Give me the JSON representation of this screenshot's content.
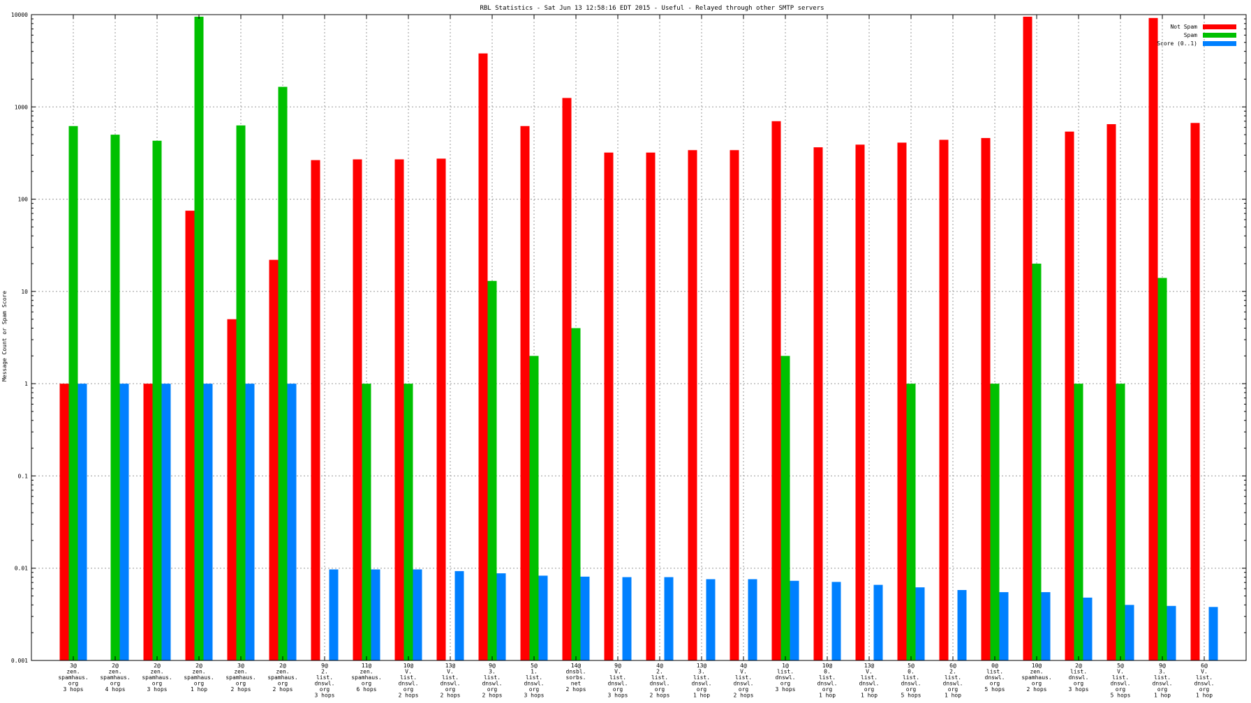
{
  "chart_data": {
    "type": "bar",
    "title": "RBL Statistics - Sat Jun 13 12:58:16 EDT 2015 - Useful - Relayed through other SMTP servers",
    "xlabel": "",
    "ylabel": "Message Count or Spam Score",
    "yscale": "log",
    "ylim": [
      0.001,
      10000
    ],
    "yticks": [
      "0.001",
      "0.01",
      "0.1",
      "1",
      "10",
      "100",
      "1000",
      "10000"
    ],
    "grid": true,
    "legend_position": "top-right",
    "categories": [
      [
        "3@",
        "zen.",
        "spamhaus.",
        "org",
        "3 hops"
      ],
      [
        "2@",
        "zen.",
        "spamhaus.",
        "org",
        "4 hops"
      ],
      [
        "2@",
        "zen.",
        "spamhaus.",
        "org",
        "3 hops"
      ],
      [
        "2@",
        "zen.",
        "spamhaus.",
        "org",
        "1 hop"
      ],
      [
        "3@",
        "zen.",
        "spamhaus.",
        "org",
        "2 hops"
      ],
      [
        "2@",
        "zen.",
        "spamhaus.",
        "org",
        "2 hops"
      ],
      [
        "9@",
        "2.",
        "list.",
        "dnswl.",
        "org",
        "3 hops"
      ],
      [
        "11@",
        "zen.",
        "spamhaus.",
        "org",
        "6 hops"
      ],
      [
        "10@",
        "V.",
        "list.",
        "dnswl.",
        "org",
        "2 hops"
      ],
      [
        "13@",
        "V.",
        "list.",
        "dnswl.",
        "org",
        "2 hops"
      ],
      [
        "9@",
        "3.",
        "list.",
        "dnswl.",
        "org",
        "2 hops"
      ],
      [
        "5@",
        "1.",
        "list.",
        "dnswl.",
        "org",
        "3 hops"
      ],
      [
        "14@",
        "dnsbl.",
        "sorbs.",
        "net",
        "2 hops"
      ],
      [
        "9@",
        "V.",
        "list.",
        "dnswl.",
        "org",
        "3 hops"
      ],
      [
        "4@",
        "2.",
        "list.",
        "dnswl.",
        "org",
        "2 hops"
      ],
      [
        "13@",
        "3.",
        "list.",
        "dnswl.",
        "org",
        "1 hop"
      ],
      [
        "4@",
        "V.",
        "list.",
        "dnswl.",
        "org",
        "2 hops"
      ],
      [
        "1@",
        "list.",
        "dnswl.",
        "org",
        "3 hops"
      ],
      [
        "10@",
        "0.",
        "list.",
        "dnswl.",
        "org",
        "1 hop"
      ],
      [
        "13@",
        "V.",
        "list.",
        "dnswl.",
        "org",
        "1 hop"
      ],
      [
        "5@",
        "0.",
        "list.",
        "dnswl.",
        "org",
        "5 hops"
      ],
      [
        "6@",
        "2.",
        "list.",
        "dnswl.",
        "org",
        "1 hop"
      ],
      [
        "0@",
        "list.",
        "dnswl.",
        "org",
        "5 hops"
      ],
      [
        "10@",
        "zen.",
        "spamhaus.",
        "org",
        "2 hops"
      ],
      [
        "2@",
        "list.",
        "dnswl.",
        "org",
        "3 hops"
      ],
      [
        "5@",
        "V.",
        "list.",
        "dnswl.",
        "org",
        "5 hops"
      ],
      [
        "9@",
        "3.",
        "list.",
        "dnswl.",
        "org",
        "1 hop"
      ],
      [
        "6@",
        "V.",
        "list.",
        "dnswl.",
        "org",
        "1 hop"
      ]
    ],
    "series": [
      {
        "name": "Not Spam",
        "color": "#ff0000",
        "values": [
          1,
          null,
          1,
          75,
          5,
          22,
          265,
          270,
          270,
          275,
          3800,
          620,
          1250,
          320,
          320,
          340,
          340,
          700,
          365,
          390,
          410,
          440,
          460,
          9500,
          540,
          650,
          9200,
          670
        ]
      },
      {
        "name": "Spam",
        "color": "#00c000",
        "values": [
          620,
          500,
          430,
          9500,
          630,
          1650,
          null,
          1,
          1,
          null,
          13,
          2,
          4,
          null,
          null,
          null,
          null,
          2,
          null,
          null,
          1,
          null,
          1,
          20,
          1,
          1,
          14,
          null
        ]
      },
      {
        "name": "Score (0..1)",
        "color": "#0080ff",
        "values": [
          1,
          1,
          1,
          1,
          1,
          1,
          0.0097,
          0.0097,
          0.0097,
          0.0093,
          0.0088,
          0.0083,
          0.0081,
          0.008,
          0.008,
          0.0076,
          0.0076,
          0.0073,
          0.0071,
          0.0066,
          0.0062,
          0.0058,
          0.0055,
          0.0055,
          0.0048,
          0.004,
          0.0039,
          0.0038
        ]
      }
    ]
  }
}
